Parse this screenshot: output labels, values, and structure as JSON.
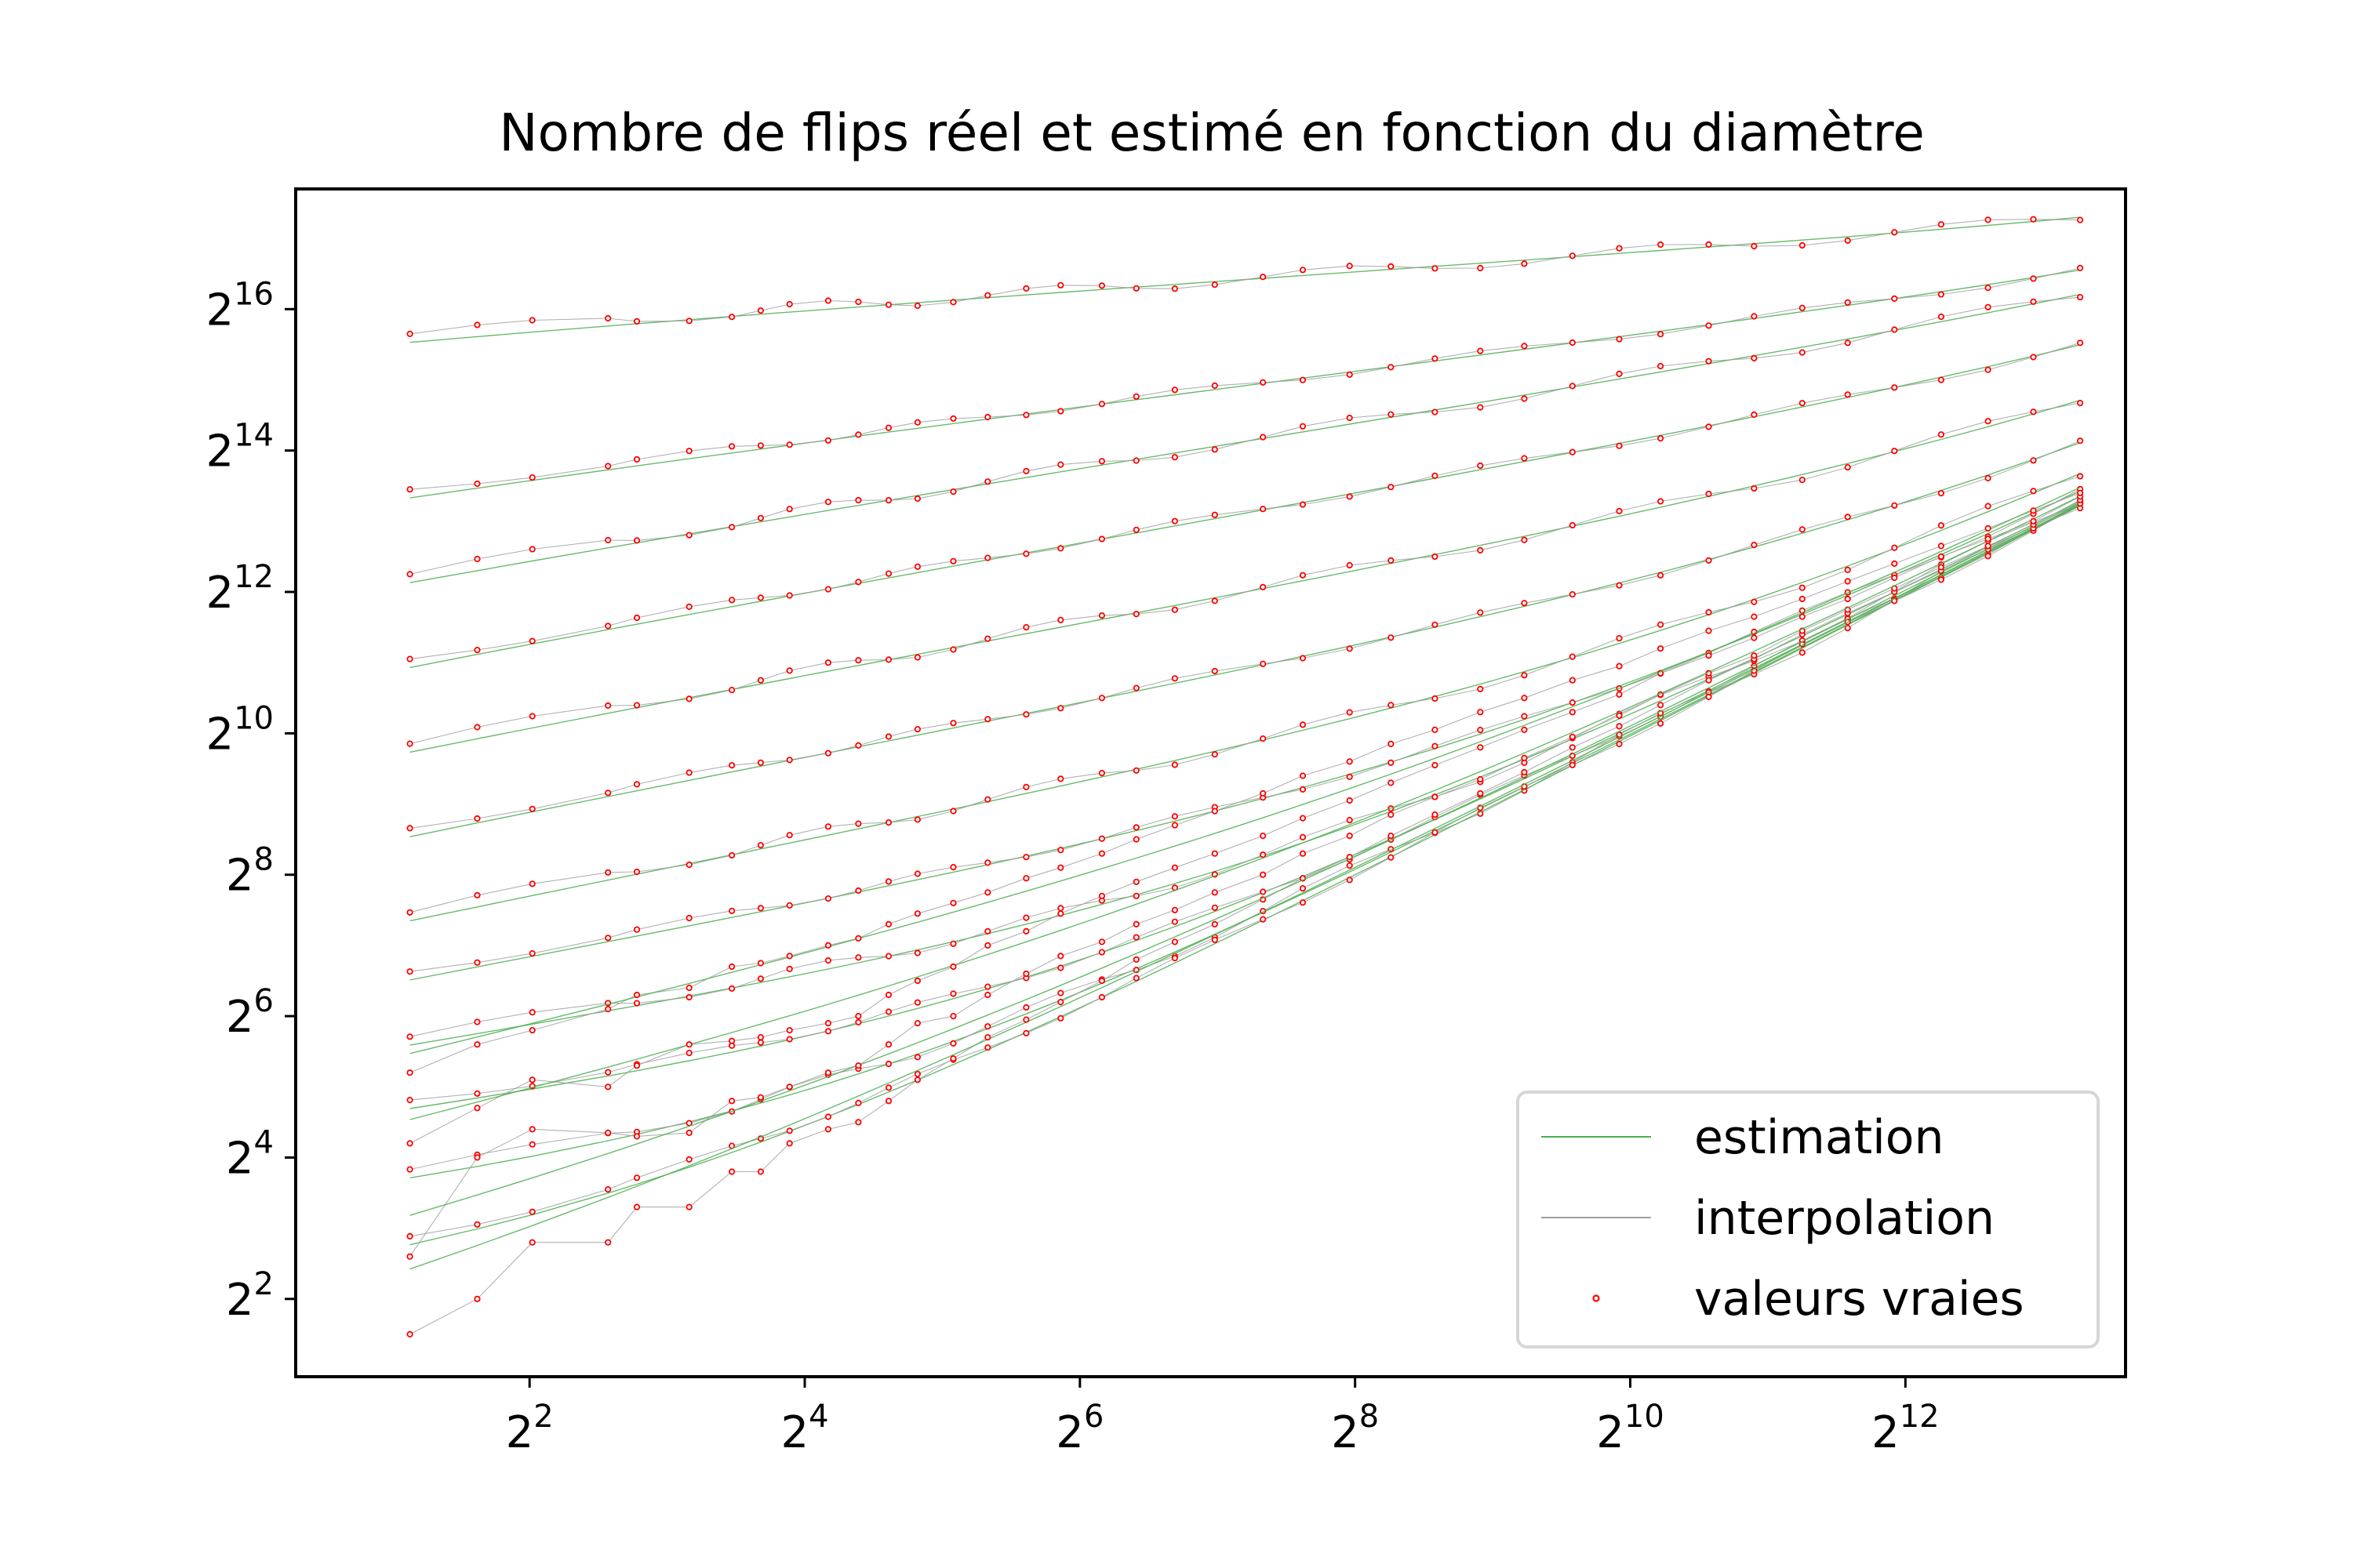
{
  "chart_data": {
    "type": "line",
    "title": "Nombre de flips réel et estimé en fonction du diamètre",
    "xlabel": "",
    "ylabel": "",
    "x_scale": "log2",
    "y_scale": "log2",
    "xlim_log2": [
      0.3,
      13.6
    ],
    "ylim_log2": [
      0.9,
      17.7
    ],
    "x_ticks": [
      {
        "base": "2",
        "exp": "2",
        "log2": 2
      },
      {
        "base": "2",
        "exp": "4",
        "log2": 4
      },
      {
        "base": "2",
        "exp": "6",
        "log2": 6
      },
      {
        "base": "2",
        "exp": "8",
        "log2": 8
      },
      {
        "base": "2",
        "exp": "10",
        "log2": 10
      },
      {
        "base": "2",
        "exp": "12",
        "log2": 12
      }
    ],
    "y_ticks": [
      {
        "base": "2",
        "exp": "2",
        "log2": 2
      },
      {
        "base": "2",
        "exp": "4",
        "log2": 4
      },
      {
        "base": "2",
        "exp": "6",
        "log2": 6
      },
      {
        "base": "2",
        "exp": "8",
        "log2": 8
      },
      {
        "base": "2",
        "exp": "10",
        "log2": 10
      },
      {
        "base": "2",
        "exp": "12",
        "log2": 12
      },
      {
        "base": "2",
        "exp": "14",
        "log2": 14
      },
      {
        "base": "2",
        "exp": "16",
        "log2": 16
      }
    ],
    "x_log2": [
      1.13,
      1.62,
      2.02,
      2.57,
      2.78,
      3.16,
      3.47,
      3.68,
      3.89,
      4.17,
      4.39,
      4.61,
      4.82,
      5.08,
      5.33,
      5.61,
      5.86,
      6.16,
      6.41,
      6.69,
      6.98,
      7.33,
      7.62,
      7.96,
      8.26,
      8.58,
      8.91,
      9.23,
      9.58,
      9.92,
      10.22,
      10.57,
      10.9,
      11.25,
      11.58,
      11.92,
      12.26,
      12.6,
      12.93,
      13.27
    ],
    "curve_params": [
      {
        "y0": 15.65,
        "shift": 7.5,
        "span": 17.0
      },
      {
        "y0": 13.45,
        "shift": 7.5,
        "span": 16.0
      },
      {
        "y0": 12.25,
        "shift": 7.5,
        "span": 15.5
      },
      {
        "y0": 11.05,
        "shift": 7.5,
        "span": 14.6
      },
      {
        "y0": 9.85,
        "shift": 7.0,
        "span": 13.5
      },
      {
        "y0": 8.65,
        "shift": 6.5,
        "span": 12.4
      },
      {
        "y0": 7.45,
        "shift": 6.0,
        "span": 11.2
      },
      {
        "y0": 6.6,
        "shift": 5.0,
        "span": 10.0
      },
      {
        "y0": 5.65,
        "shift": 4.0,
        "span": 8.4
      },
      {
        "y0": 4.7,
        "shift": 3.0,
        "span": 6.8
      },
      {
        "y0": 3.6,
        "shift": 2.0,
        "span": 5.2
      },
      {
        "y0": 2.4,
        "shift": 1.0,
        "span": 4.0
      }
    ],
    "noisy_series": [
      {
        "name": "",
        "x_log2": [
          1.13,
          1.62,
          2.02,
          2.57,
          2.78,
          3.16,
          3.47,
          3.68,
          3.89,
          4.17,
          4.39,
          4.61,
          4.82,
          5.08,
          5.33,
          5.61,
          5.86,
          6.16,
          6.41,
          6.69,
          6.98,
          7.33,
          7.62,
          7.96,
          8.26,
          8.58,
          8.91,
          9.23,
          9.58,
          9.92,
          10.22,
          10.57,
          10.9,
          11.25,
          11.58,
          11.92,
          12.26,
          12.6,
          12.93,
          13.27
        ],
        "y_log2": [
          1.5,
          2.0,
          2.8,
          2.8,
          3.3,
          3.3,
          3.8,
          3.8,
          4.2,
          4.4,
          4.5,
          4.8,
          5.1,
          5.4,
          5.7,
          5.95,
          6.2,
          6.5,
          6.8,
          7.05,
          7.3,
          7.65,
          7.95,
          8.25,
          8.55,
          8.85,
          9.15,
          9.45,
          9.8,
          10.1,
          10.4,
          10.75,
          11.05,
          11.4,
          11.7,
          12.0,
          12.3,
          12.6,
          12.9,
          13.25
        ]
      },
      {
        "name": "",
        "x_log2": [
          1.13,
          1.62,
          2.02,
          2.57,
          2.78,
          3.16,
          3.47,
          3.68,
          3.89,
          4.17,
          4.39,
          4.61,
          4.82,
          5.08,
          5.33,
          5.61,
          5.86,
          6.16,
          6.41,
          6.69,
          6.98,
          7.33,
          7.62,
          7.96,
          8.26,
          8.58,
          8.91,
          9.23,
          9.58,
          9.92,
          10.22,
          10.57,
          10.9,
          11.25,
          11.58,
          11.92,
          12.26,
          12.6,
          12.93,
          13.27
        ],
        "y_log2": [
          2.6,
          4.0,
          4.4,
          4.35,
          4.3,
          4.35,
          4.8,
          4.85,
          5.0,
          5.2,
          5.3,
          5.6,
          5.9,
          6.0,
          6.3,
          6.6,
          6.85,
          7.05,
          7.3,
          7.5,
          7.75,
          8.0,
          8.3,
          8.55,
          8.85,
          9.1,
          9.35,
          9.65,
          9.95,
          10.25,
          10.55,
          10.85,
          11.1,
          11.45,
          11.75,
          12.05,
          12.35,
          12.65,
          12.95,
          13.3
        ]
      },
      {
        "name": "",
        "x_log2": [
          1.13,
          1.62,
          2.02,
          2.57,
          2.78,
          3.16,
          3.47,
          3.68,
          3.89,
          4.17,
          4.39,
          4.61,
          4.82,
          5.08,
          5.33,
          5.61,
          5.86,
          6.16,
          6.41,
          6.69,
          6.98,
          7.33,
          7.62,
          7.96,
          8.26,
          8.58,
          8.91,
          9.23,
          9.58,
          9.92,
          10.22,
          10.57,
          10.9,
          11.25,
          11.58,
          11.92,
          12.26,
          12.6,
          12.93,
          13.27
        ],
        "y_log2": [
          4.2,
          4.7,
          5.1,
          5.0,
          5.3,
          5.6,
          5.65,
          5.7,
          5.8,
          5.9,
          6.0,
          6.3,
          6.5,
          6.7,
          7.0,
          7.2,
          7.45,
          7.7,
          7.9,
          8.1,
          8.3,
          8.55,
          8.8,
          9.05,
          9.3,
          9.55,
          9.8,
          10.05,
          10.3,
          10.55,
          10.85,
          11.1,
          11.35,
          11.65,
          11.9,
          12.2,
          12.5,
          12.75,
          13.0,
          13.35
        ]
      },
      {
        "name": "",
        "x_log2": [
          1.13,
          1.62,
          2.02,
          2.57,
          2.78,
          3.16,
          3.47,
          3.68,
          3.89,
          4.17,
          4.39,
          4.61,
          4.82,
          5.08,
          5.33,
          5.61,
          5.86,
          6.16,
          6.41,
          6.69,
          6.98,
          7.33,
          7.62,
          7.96,
          8.26,
          8.58,
          8.91,
          9.23,
          9.58,
          9.92,
          10.22,
          10.57,
          10.9,
          11.25,
          11.58,
          11.92,
          12.26,
          12.6,
          12.93,
          13.27
        ],
        "y_log2": [
          5.2,
          5.6,
          5.8,
          6.1,
          6.3,
          6.4,
          6.7,
          6.75,
          6.85,
          7.0,
          7.1,
          7.3,
          7.45,
          7.6,
          7.75,
          7.95,
          8.1,
          8.3,
          8.5,
          8.7,
          8.9,
          9.15,
          9.4,
          9.6,
          9.85,
          10.05,
          10.3,
          10.5,
          10.75,
          10.95,
          11.2,
          11.45,
          11.65,
          11.9,
          12.15,
          12.4,
          12.65,
          12.9,
          13.15,
          13.4
        ]
      }
    ],
    "legend": {
      "position": "lower right",
      "entries": [
        {
          "label": "estimation",
          "color": "#4caf50",
          "marker": "line"
        },
        {
          "label": "interpolation",
          "color": "#9e9e9e",
          "marker": "line"
        },
        {
          "label": "valeurs vraies",
          "color": "#ff0000",
          "marker": "circle"
        }
      ]
    },
    "colors": {
      "estimation": "#4caf50",
      "interpolation": "#9e9e9e",
      "true_values": "#ff0000"
    },
    "grid": false
  }
}
